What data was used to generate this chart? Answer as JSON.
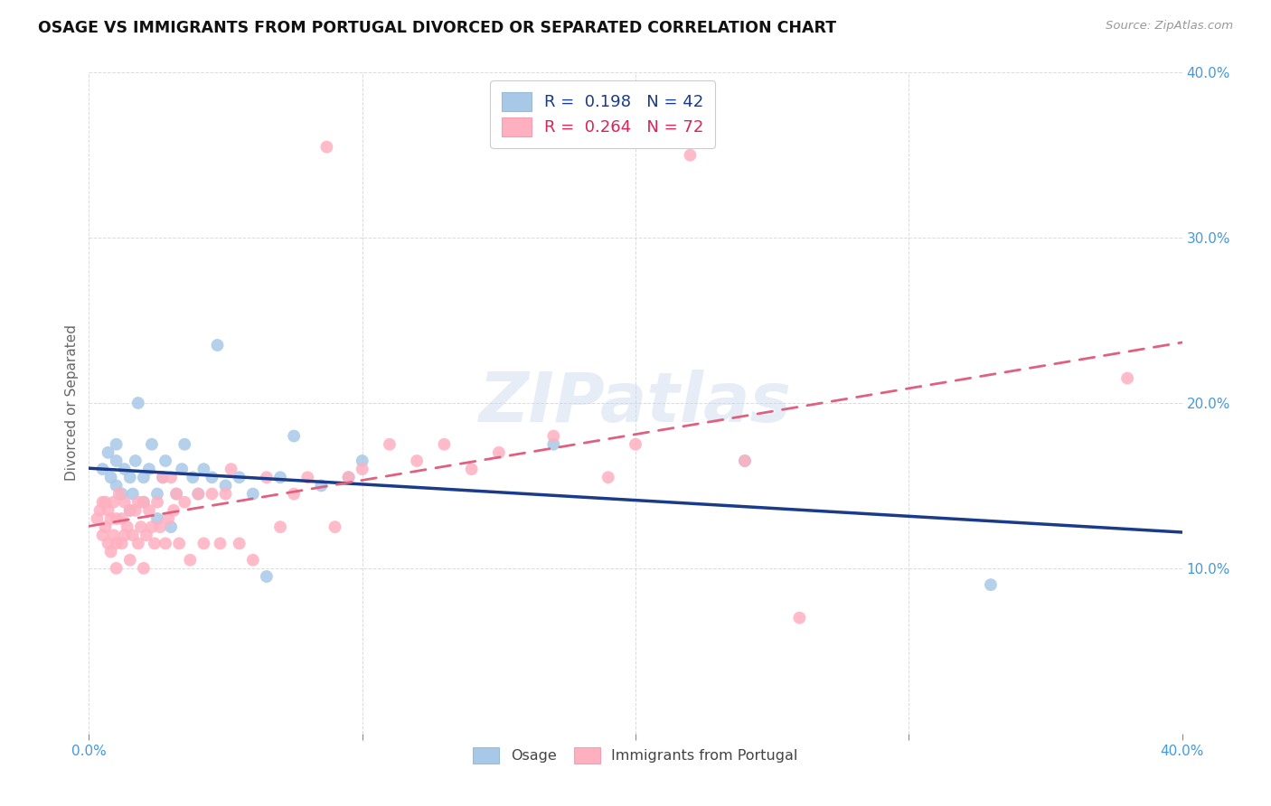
{
  "title": "OSAGE VS IMMIGRANTS FROM PORTUGAL DIVORCED OR SEPARATED CORRELATION CHART",
  "source": "Source: ZipAtlas.com",
  "ylabel": "Divorced or Separated",
  "legend_label1": "Osage",
  "legend_label2": "Immigrants from Portugal",
  "r1": "0.198",
  "n1": "42",
  "r2": "0.264",
  "n2": "72",
  "xlim": [
    0.0,
    0.4
  ],
  "ylim": [
    0.0,
    0.4
  ],
  "xticks": [
    0.0,
    0.1,
    0.2,
    0.3,
    0.4
  ],
  "yticks": [
    0.1,
    0.2,
    0.3,
    0.4
  ],
  "xtick_labels": [
    "0.0%",
    "",
    "",
    "",
    "40.0%"
  ],
  "ytick_labels": [
    "10.0%",
    "20.0%",
    "30.0%",
    "40.0%"
  ],
  "color_blue": "#A8C8E8",
  "color_pink": "#FFB0C0",
  "line_blue": "#1A3A8A",
  "line_pink": "#E06080",
  "bg_color": "#FFFFFF",
  "grid_color": "#CCCCCC",
  "title_color": "#111111",
  "tick_color": "#4499DD",
  "watermark": "ZIPatlas",
  "osage_x": [
    0.005,
    0.007,
    0.008,
    0.01,
    0.01,
    0.01,
    0.012,
    0.013,
    0.015,
    0.015,
    0.016,
    0.017,
    0.018,
    0.02,
    0.02,
    0.022,
    0.023,
    0.025,
    0.025,
    0.027,
    0.028,
    0.03,
    0.032,
    0.034,
    0.035,
    0.038,
    0.04,
    0.042,
    0.045,
    0.047,
    0.05,
    0.055,
    0.06,
    0.065,
    0.07,
    0.075,
    0.085,
    0.095,
    0.1,
    0.17,
    0.24,
    0.33
  ],
  "osage_y": [
    0.16,
    0.17,
    0.155,
    0.15,
    0.165,
    0.175,
    0.145,
    0.16,
    0.135,
    0.155,
    0.145,
    0.165,
    0.2,
    0.14,
    0.155,
    0.16,
    0.175,
    0.13,
    0.145,
    0.155,
    0.165,
    0.125,
    0.145,
    0.16,
    0.175,
    0.155,
    0.145,
    0.16,
    0.155,
    0.235,
    0.15,
    0.155,
    0.145,
    0.095,
    0.155,
    0.18,
    0.15,
    0.155,
    0.165,
    0.175,
    0.165,
    0.09
  ],
  "portugal_x": [
    0.003,
    0.004,
    0.005,
    0.005,
    0.006,
    0.006,
    0.007,
    0.007,
    0.008,
    0.008,
    0.009,
    0.009,
    0.01,
    0.01,
    0.01,
    0.011,
    0.012,
    0.012,
    0.013,
    0.013,
    0.014,
    0.015,
    0.015,
    0.016,
    0.017,
    0.018,
    0.018,
    0.019,
    0.02,
    0.02,
    0.021,
    0.022,
    0.023,
    0.024,
    0.025,
    0.026,
    0.027,
    0.028,
    0.029,
    0.03,
    0.031,
    0.032,
    0.033,
    0.035,
    0.037,
    0.04,
    0.042,
    0.045,
    0.048,
    0.05,
    0.052,
    0.055,
    0.06,
    0.065,
    0.07,
    0.075,
    0.08,
    0.09,
    0.095,
    0.1,
    0.11,
    0.12,
    0.13,
    0.14,
    0.15,
    0.17,
    0.19,
    0.2,
    0.22,
    0.24,
    0.26,
    0.38
  ],
  "portugal_y": [
    0.13,
    0.135,
    0.12,
    0.14,
    0.125,
    0.14,
    0.115,
    0.135,
    0.11,
    0.13,
    0.12,
    0.14,
    0.1,
    0.115,
    0.13,
    0.145,
    0.115,
    0.13,
    0.12,
    0.14,
    0.125,
    0.105,
    0.135,
    0.12,
    0.135,
    0.115,
    0.14,
    0.125,
    0.1,
    0.14,
    0.12,
    0.135,
    0.125,
    0.115,
    0.14,
    0.125,
    0.155,
    0.115,
    0.13,
    0.155,
    0.135,
    0.145,
    0.115,
    0.14,
    0.105,
    0.145,
    0.115,
    0.145,
    0.115,
    0.145,
    0.16,
    0.115,
    0.105,
    0.155,
    0.125,
    0.145,
    0.155,
    0.125,
    0.155,
    0.16,
    0.175,
    0.165,
    0.175,
    0.16,
    0.17,
    0.18,
    0.155,
    0.175,
    0.35,
    0.165,
    0.07,
    0.215
  ],
  "portugal_outlier_x": [
    0.087
  ],
  "portugal_outlier_y": [
    0.355
  ]
}
